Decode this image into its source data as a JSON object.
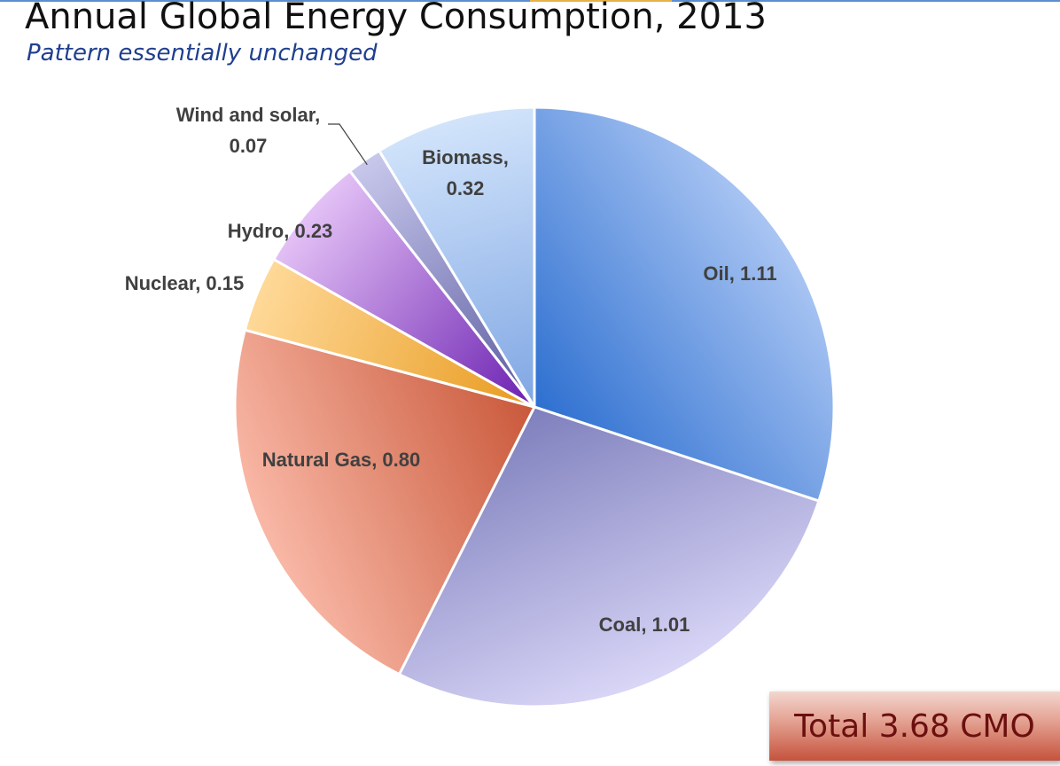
{
  "title": "Annual Global Energy Consumption, 2013",
  "subtitle": "Pattern essentially unchanged",
  "total_label": "Total 3.68 CMO",
  "chart_data": {
    "type": "pie",
    "title": "Annual Global Energy Consumption, 2013",
    "start_angle": "12 o'clock",
    "direction": "clockwise",
    "slices": [
      {
        "label": "Oil",
        "value": 1.11,
        "text": "Oil, 1.11",
        "color_light": "#a9c5f3",
        "color_dark": "#2d6fd0"
      },
      {
        "label": "Coal",
        "value": 1.01,
        "text": "Coal, 1.01",
        "color_light": "#d9d6f7",
        "color_dark": "#7e7fbd"
      },
      {
        "label": "Natural Gas",
        "value": 0.8,
        "text": "Natural Gas, 0.80",
        "color_light": "#f9b8a6",
        "color_dark": "#c9583a"
      },
      {
        "label": "Nuclear",
        "value": 0.15,
        "text": "Nuclear, 0.15",
        "color_light": "#ffd999",
        "color_dark": "#e89a1e"
      },
      {
        "label": "Hydro",
        "value": 0.23,
        "text": "Hydro, 0.23",
        "color_light": "#e4c2f6",
        "color_dark": "#6a1fb0"
      },
      {
        "label": "Wind and solar",
        "value": 0.07,
        "text": "Wind and solar,\n0.07",
        "color_light": "#c8c8ec",
        "color_dark": "#5a5aa0"
      },
      {
        "label": "Biomass",
        "value": 0.32,
        "text": "Biomass,\n0.32",
        "color_light": "#d2e4fb",
        "color_dark": "#7fa6e3"
      }
    ]
  }
}
